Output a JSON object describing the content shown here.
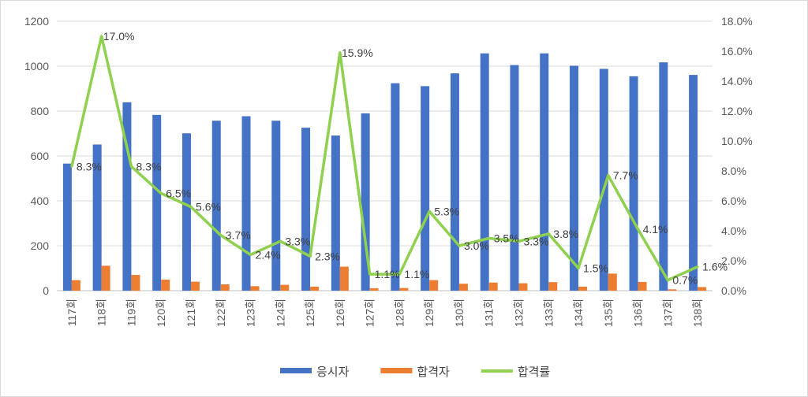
{
  "chart_data": {
    "type": "bar",
    "categories": [
      "117회",
      "118회",
      "119회",
      "120회",
      "121회",
      "122회",
      "123회",
      "124회",
      "125회",
      "126회",
      "127회",
      "128회",
      "129회",
      "130회",
      "131회",
      "132회",
      "133회",
      "134회",
      "135회",
      "136회",
      "137회",
      "138회"
    ],
    "series": [
      {
        "name": "응시자",
        "type": "bar",
        "axis": "left",
        "color": "#4472C4",
        "values": [
          566,
          651,
          839,
          783,
          701,
          757,
          777,
          757,
          726,
          691,
          790,
          924,
          911,
          968,
          1057,
          1005,
          1057,
          1002,
          988,
          955,
          1017,
          961
        ]
      },
      {
        "name": "합격자",
        "type": "bar",
        "axis": "left",
        "color": "#ED7D31",
        "values": [
          47,
          111,
          70,
          49,
          40,
          28,
          20,
          26,
          18,
          107,
          11,
          12,
          47,
          31,
          36,
          33,
          38,
          18,
          76,
          39,
          6,
          16
        ]
      },
      {
        "name": "합격률",
        "type": "line",
        "axis": "right",
        "color": "#8FD14F",
        "values": [
          8.3,
          17.0,
          8.3,
          6.5,
          5.6,
          3.7,
          2.4,
          3.3,
          2.3,
          15.9,
          1.1,
          1.1,
          5.3,
          3.0,
          3.5,
          3.3,
          3.8,
          1.5,
          7.7,
          4.1,
          0.7,
          1.6
        ],
        "labels": [
          "8.3%",
          "17.0%",
          "8.3%",
          "6.5%",
          "5.6%",
          "3.7%",
          "2.4%",
          "3.3%",
          "2.3%",
          "15.9%",
          "1.1%",
          "1.1%",
          "5.3%",
          "3.0%",
          "3.5%",
          "3.3%",
          "3.8%",
          "1.5%",
          "7.7%",
          "4.1%",
          "0.7%",
          "1.6%"
        ]
      }
    ],
    "y_left": {
      "ylim": [
        0,
        1200
      ],
      "ticks": [
        "0",
        "200",
        "400",
        "600",
        "800",
        "1000",
        "1200"
      ]
    },
    "y_right": {
      "ylim": [
        0,
        18
      ],
      "ticks": [
        "0.0%",
        "2.0%",
        "4.0%",
        "6.0%",
        "8.0%",
        "10.0%",
        "12.0%",
        "14.0%",
        "16.0%",
        "18.0%"
      ]
    },
    "legend_position": "bottom",
    "grid": true
  }
}
